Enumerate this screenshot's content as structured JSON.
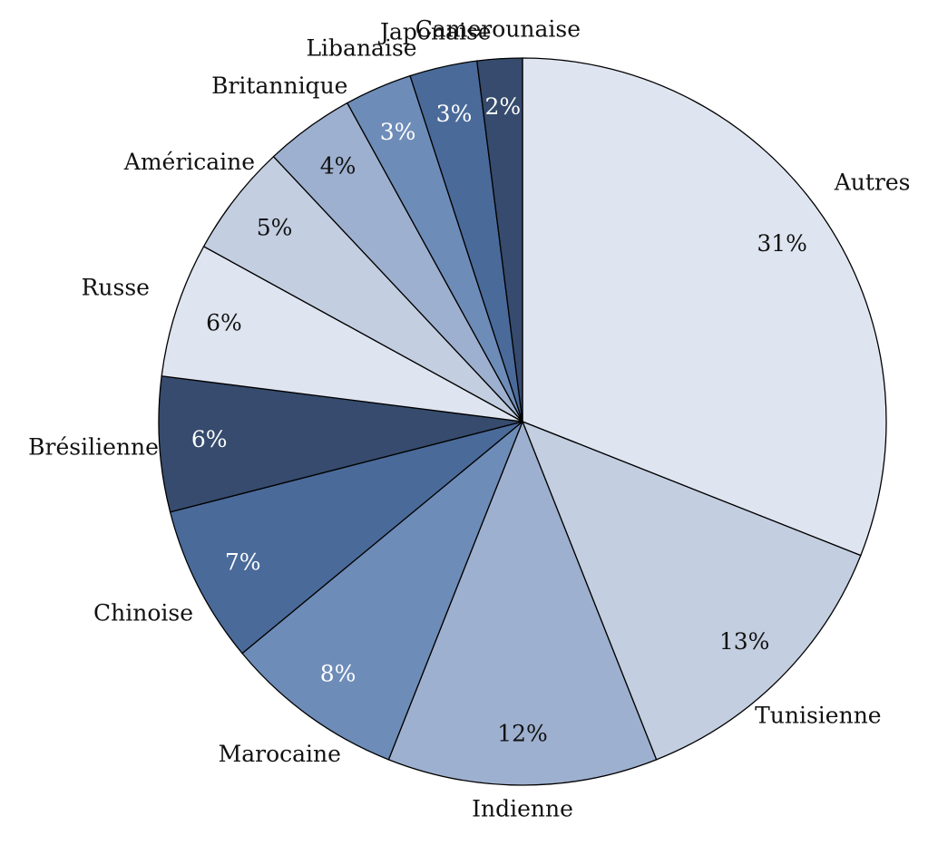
{
  "chart_data": {
    "type": "pie",
    "categories": [
      "Autres",
      "Tunisienne",
      "Indienne",
      "Marocaine",
      "Chinoise",
      "Brésilienne",
      "Russe",
      "Américaine",
      "Britannique",
      "Libanaise",
      "Japonaise",
      "Camerounaise"
    ],
    "values": [
      31,
      13,
      12,
      8,
      7,
      6,
      6,
      5,
      4,
      3,
      3,
      2
    ],
    "value_labels": [
      "31%",
      "13%",
      "12%",
      "8%",
      "7%",
      "6%",
      "6%",
      "5%",
      "4%",
      "3%",
      "3%",
      "2%"
    ],
    "colors": [
      "#dfe5f0",
      "#c3cee0",
      "#9eb0cf",
      "#6e8cb8",
      "#4a6a9a",
      "#364b6d",
      "#dfe5f0",
      "#c3cee0",
      "#9eb0cf",
      "#6e8cb8",
      "#4a6a9a",
      "#364b6d"
    ]
  }
}
